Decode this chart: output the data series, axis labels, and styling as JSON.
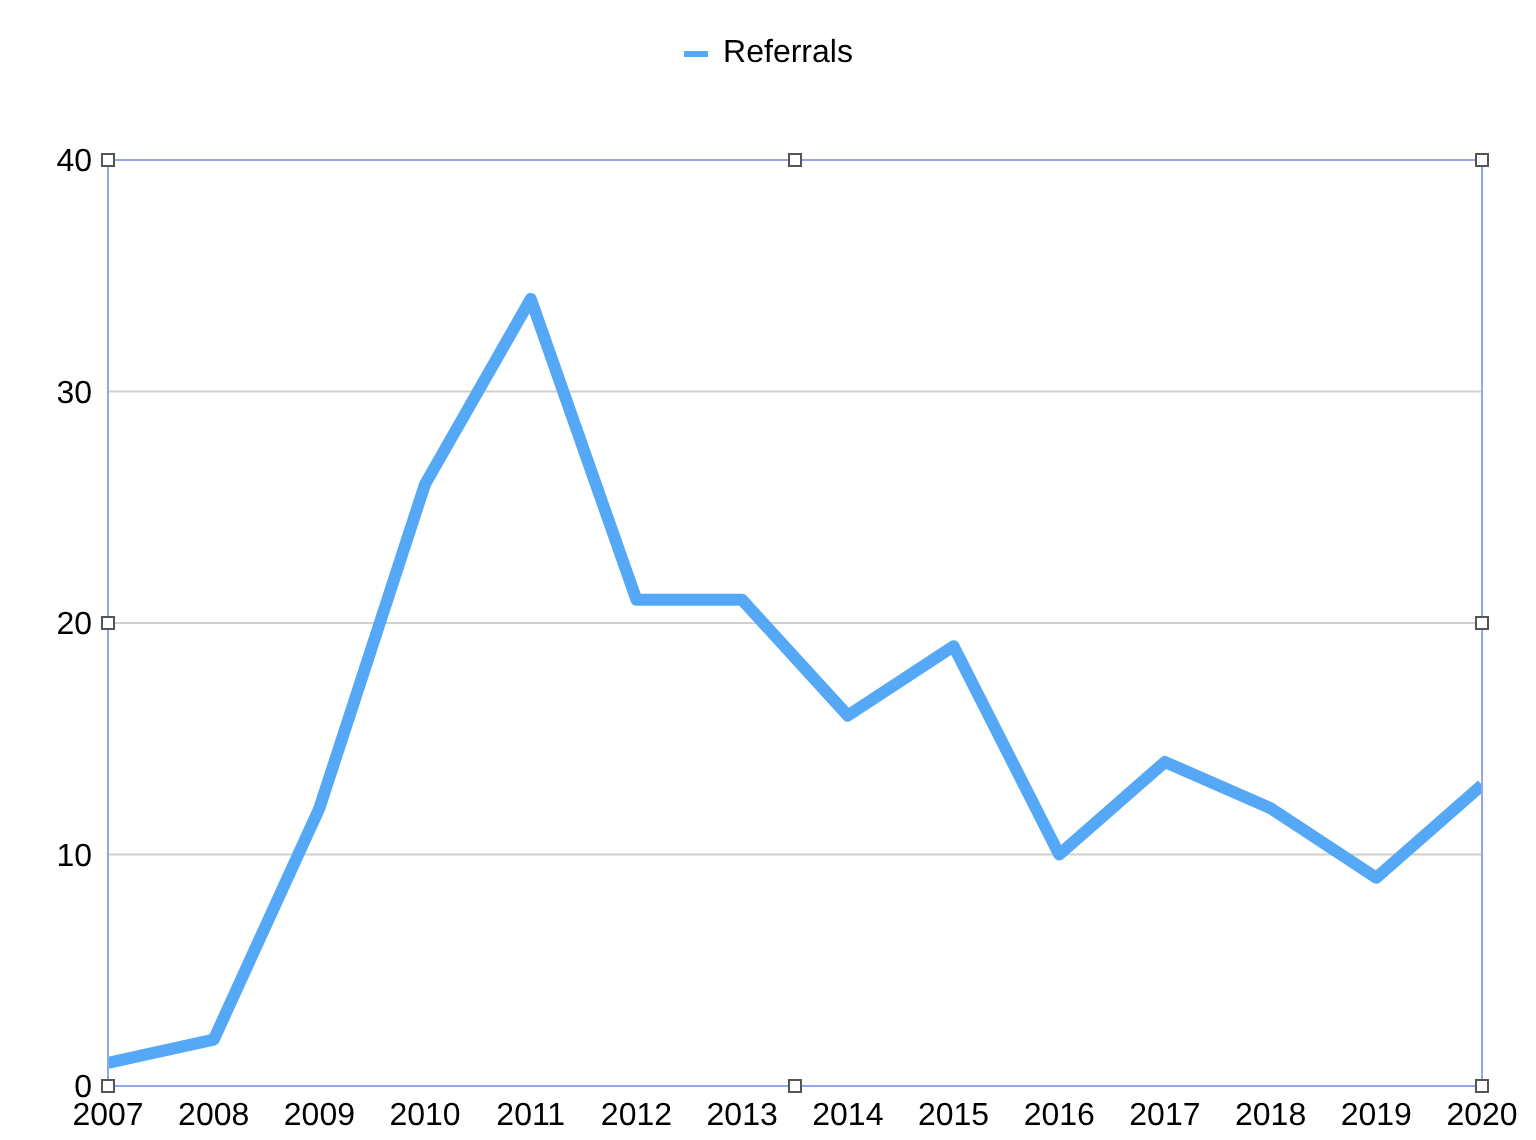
{
  "chart_data": {
    "type": "line",
    "x": [
      2007,
      2008,
      2009,
      2010,
      2011,
      2012,
      2013,
      2014,
      2015,
      2016,
      2017,
      2018,
      2019,
      2020
    ],
    "series": [
      {
        "name": "Referrals",
        "color": "#55a8f5",
        "values": [
          1,
          2,
          12,
          26,
          34,
          21,
          21,
          16,
          19,
          10,
          14,
          12,
          9,
          13
        ]
      }
    ],
    "xlim": [
      2007,
      2020
    ],
    "xticks": [
      2007,
      2008,
      2009,
      2010,
      2011,
      2012,
      2013,
      2014,
      2015,
      2016,
      2017,
      2018,
      2019,
      2020
    ],
    "ylim": [
      0,
      40
    ],
    "yticks": [
      0,
      10,
      20,
      30,
      40
    ],
    "grid": "y",
    "legend": "top",
    "marker": "none",
    "line_style": "solid"
  }
}
